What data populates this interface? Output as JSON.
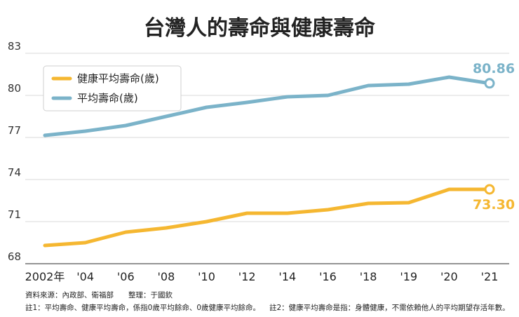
{
  "chart_data": {
    "type": "line",
    "title": "台灣人的壽命與健康壽命",
    "categories": [
      "2002年",
      "'04",
      "'06",
      "'08",
      "'10",
      "'12",
      "'14",
      "'16",
      "'18",
      "'19",
      "'20",
      "'21"
    ],
    "ylim": [
      68,
      83
    ],
    "yticks": [
      68,
      71,
      74,
      77,
      80,
      83
    ],
    "series": [
      {
        "name": "健康平均壽命(歲)",
        "color": "#f5b731",
        "values": [
          69.3,
          69.5,
          70.25,
          70.55,
          71.0,
          71.6,
          71.6,
          71.85,
          72.3,
          72.35,
          73.3,
          73.3
        ],
        "end_label": "73.30"
      },
      {
        "name": "平均壽命(歲)",
        "color": "#7bb3c9",
        "values": [
          77.15,
          77.45,
          77.85,
          78.5,
          79.15,
          79.5,
          79.9,
          80.0,
          80.7,
          80.8,
          81.3,
          80.86
        ],
        "end_label": "80.86"
      }
    ],
    "legend_position": "top-left",
    "grid": true,
    "notes": {
      "source": "資料來源：內政部、衛福部　　整理：于國欽",
      "note1": "註1：平均壽命、健康平均壽命，係指0歲平均餘命、0歲健康平均餘命。",
      "note2": "註2：健康平均壽命是指：身體健康，不需依賴他人的平均期望存活年數。"
    }
  }
}
